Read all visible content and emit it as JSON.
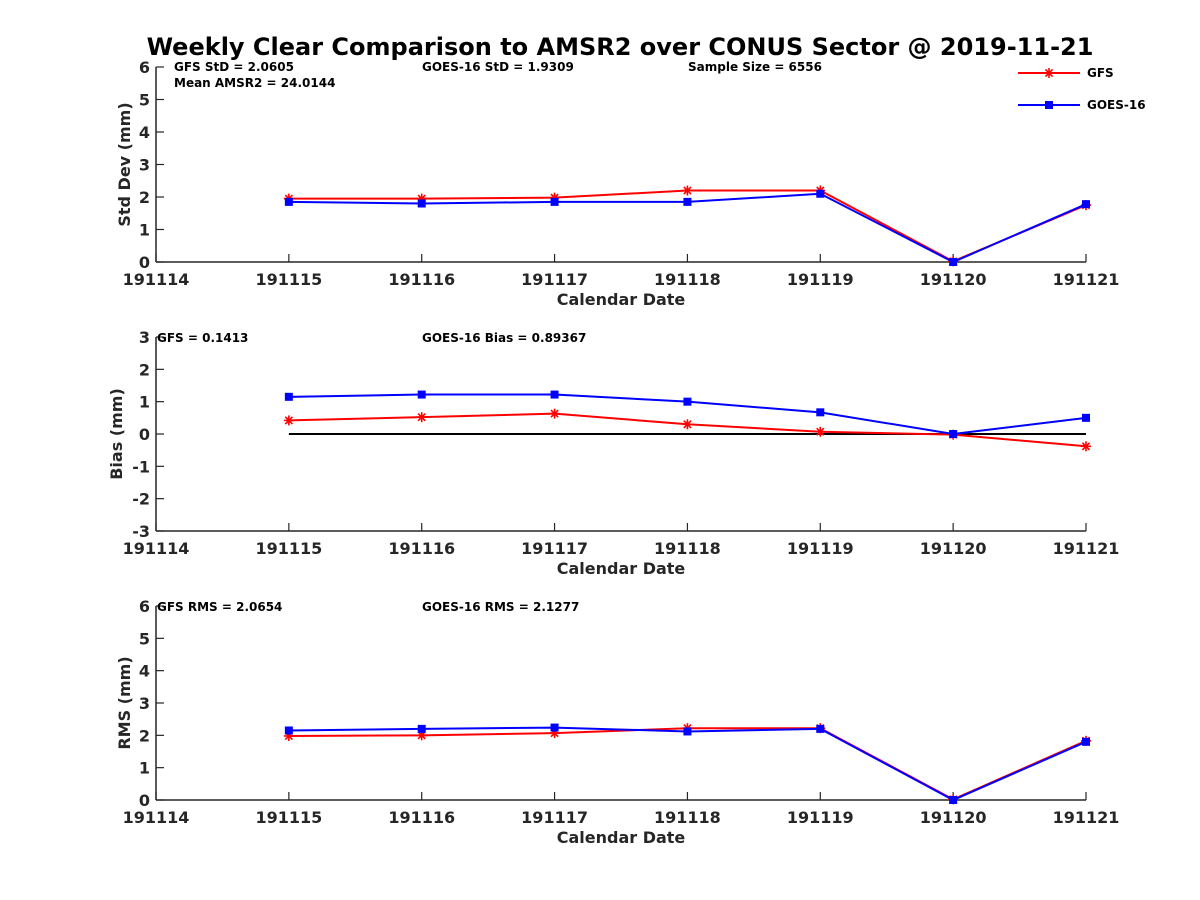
{
  "figure": {
    "title": "Weekly Clear Comparison to AMSR2 over CONUS Sector @ 2019-11-21"
  },
  "legend": {
    "placement": "top-right",
    "entries": [
      {
        "name": "GFS",
        "color": "#ff0000",
        "marker": "asterisk"
      },
      {
        "name": "GOES-16",
        "color": "#0000ff",
        "marker": "square"
      }
    ]
  },
  "chart_data": [
    {
      "type": "line",
      "xlabel": "Calendar Date",
      "ylabel": "Std Dev (mm)",
      "x_ticks": [
        "191114",
        "191115",
        "191116",
        "191117",
        "191118",
        "191119",
        "191120",
        "191121"
      ],
      "y_ticks": [
        "0",
        "1",
        "2",
        "3",
        "4",
        "5",
        "6"
      ],
      "xlim": [
        191114,
        191121
      ],
      "ylim": [
        0,
        6
      ],
      "annotations": [
        "GFS StD = 2.0605",
        "Mean AMSR2 = 24.0144",
        "GOES-16 StD = 1.9309",
        "Sample Size = 6556"
      ],
      "x": [
        191115,
        191116,
        191117,
        191118,
        191119,
        191120,
        191121
      ],
      "series": [
        {
          "name": "GFS",
          "color": "#ff0000",
          "values": [
            1.95,
            1.95,
            1.98,
            2.2,
            2.2,
            0.02,
            1.75
          ]
        },
        {
          "name": "GOES-16",
          "color": "#0000ff",
          "values": [
            1.85,
            1.8,
            1.85,
            1.85,
            2.1,
            0.0,
            1.78
          ]
        }
      ],
      "zero_line": false
    },
    {
      "type": "line",
      "xlabel": "Calendar Date",
      "ylabel": "Bias (mm)",
      "x_ticks": [
        "191114",
        "191115",
        "191116",
        "191117",
        "191118",
        "191119",
        "191120",
        "191121"
      ],
      "y_ticks": [
        "-3",
        "-2",
        "-1",
        "0",
        "1",
        "2",
        "3"
      ],
      "xlim": [
        191114,
        191121
      ],
      "ylim": [
        -3,
        3
      ],
      "annotations": [
        "GFS = 0.1413",
        "GOES-16 Bias  = 0.89367"
      ],
      "x": [
        191115,
        191116,
        191117,
        191118,
        191119,
        191120,
        191121
      ],
      "series": [
        {
          "name": "GFS",
          "color": "#ff0000",
          "values": [
            0.42,
            0.52,
            0.63,
            0.3,
            0.07,
            -0.02,
            -0.38
          ]
        },
        {
          "name": "GOES-16",
          "color": "#0000ff",
          "values": [
            1.15,
            1.22,
            1.22,
            1.0,
            0.67,
            0.0,
            0.5
          ]
        }
      ],
      "zero_line": true
    },
    {
      "type": "line",
      "xlabel": "Calendar Date",
      "ylabel": "RMS (mm)",
      "x_ticks": [
        "191114",
        "191115",
        "191116",
        "191117",
        "191118",
        "191119",
        "191120",
        "191121"
      ],
      "y_ticks": [
        "0",
        "1",
        "2",
        "3",
        "4",
        "5",
        "6"
      ],
      "xlim": [
        191114,
        191121
      ],
      "ylim": [
        0,
        6
      ],
      "annotations": [
        "GFS RMS = 2.0654",
        "GOES-16 RMS = 2.1277"
      ],
      "x": [
        191115,
        191116,
        191117,
        191118,
        191119,
        191120,
        191121
      ],
      "series": [
        {
          "name": "GFS",
          "color": "#ff0000",
          "values": [
            1.98,
            2.0,
            2.07,
            2.22,
            2.22,
            0.02,
            1.83
          ]
        },
        {
          "name": "GOES-16",
          "color": "#0000ff",
          "values": [
            2.15,
            2.2,
            2.24,
            2.12,
            2.2,
            0.0,
            1.8
          ]
        }
      ],
      "zero_line": false
    }
  ]
}
